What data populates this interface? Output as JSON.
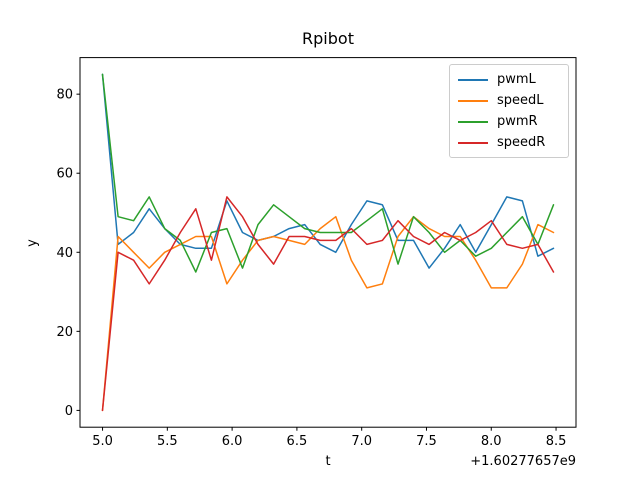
{
  "chart_data": {
    "type": "line",
    "title": "Rpibot",
    "xlabel": "t",
    "ylabel": "y",
    "x_offset_text": "+1.60277657e9",
    "grid": false,
    "legend": {
      "position": "upper right"
    },
    "xlim": [
      4.826,
      8.654
    ],
    "ylim": [
      -4.25,
      89.25
    ],
    "x_ticks": {
      "values": [
        5.0,
        5.5,
        6.0,
        6.5,
        7.0,
        7.5,
        8.0,
        8.5
      ],
      "labels": [
        "5.0",
        "5.5",
        "6.0",
        "6.5",
        "7.0",
        "7.5",
        "8.0",
        "8.5"
      ]
    },
    "y_ticks": {
      "values": [
        0,
        20,
        40,
        60,
        80
      ],
      "labels": [
        "0",
        "20",
        "40",
        "60",
        "80"
      ]
    },
    "x": [
      5.0,
      5.12,
      5.24,
      5.36,
      5.48,
      5.6,
      5.72,
      5.84,
      5.96,
      6.08,
      6.2,
      6.32,
      6.44,
      6.56,
      6.68,
      6.8,
      6.92,
      7.04,
      7.16,
      7.28,
      7.4,
      7.52,
      7.64,
      7.76,
      7.88,
      8.0,
      8.12,
      8.24,
      8.36,
      8.48
    ],
    "series": [
      {
        "name": "pwmL",
        "color": "#1f77b4",
        "values": [
          85,
          42,
          45,
          51,
          46,
          42,
          41,
          41,
          53,
          45,
          43,
          44,
          46,
          47,
          42,
          40,
          47,
          53,
          52,
          43,
          43,
          36,
          41,
          47,
          40,
          47,
          54,
          53,
          39,
          41
        ]
      },
      {
        "name": "speedL",
        "color": "#ff7f0e",
        "values": [
          0,
          44,
          40,
          36,
          40,
          42,
          44,
          44,
          32,
          38,
          43,
          44,
          43,
          42,
          46,
          49,
          38,
          31,
          32,
          44,
          49,
          46,
          44,
          44,
          38,
          31,
          31,
          37,
          47,
          45
        ]
      },
      {
        "name": "pwmR",
        "color": "#2ca02c",
        "values": [
          85,
          49,
          48,
          54,
          46,
          43,
          35,
          45,
          46,
          36,
          47,
          52,
          49,
          46,
          45,
          45,
          45,
          48,
          51,
          37,
          49,
          45,
          40,
          43,
          39,
          41,
          45,
          49,
          42,
          52
        ]
      },
      {
        "name": "speedR",
        "color": "#d62728",
        "values": [
          0,
          40,
          38,
          32,
          38,
          45,
          51,
          38,
          54,
          49,
          42,
          37,
          44,
          44,
          43,
          43,
          46,
          42,
          43,
          48,
          44,
          42,
          45,
          43,
          45,
          48,
          42,
          41,
          42,
          35
        ]
      }
    ]
  }
}
